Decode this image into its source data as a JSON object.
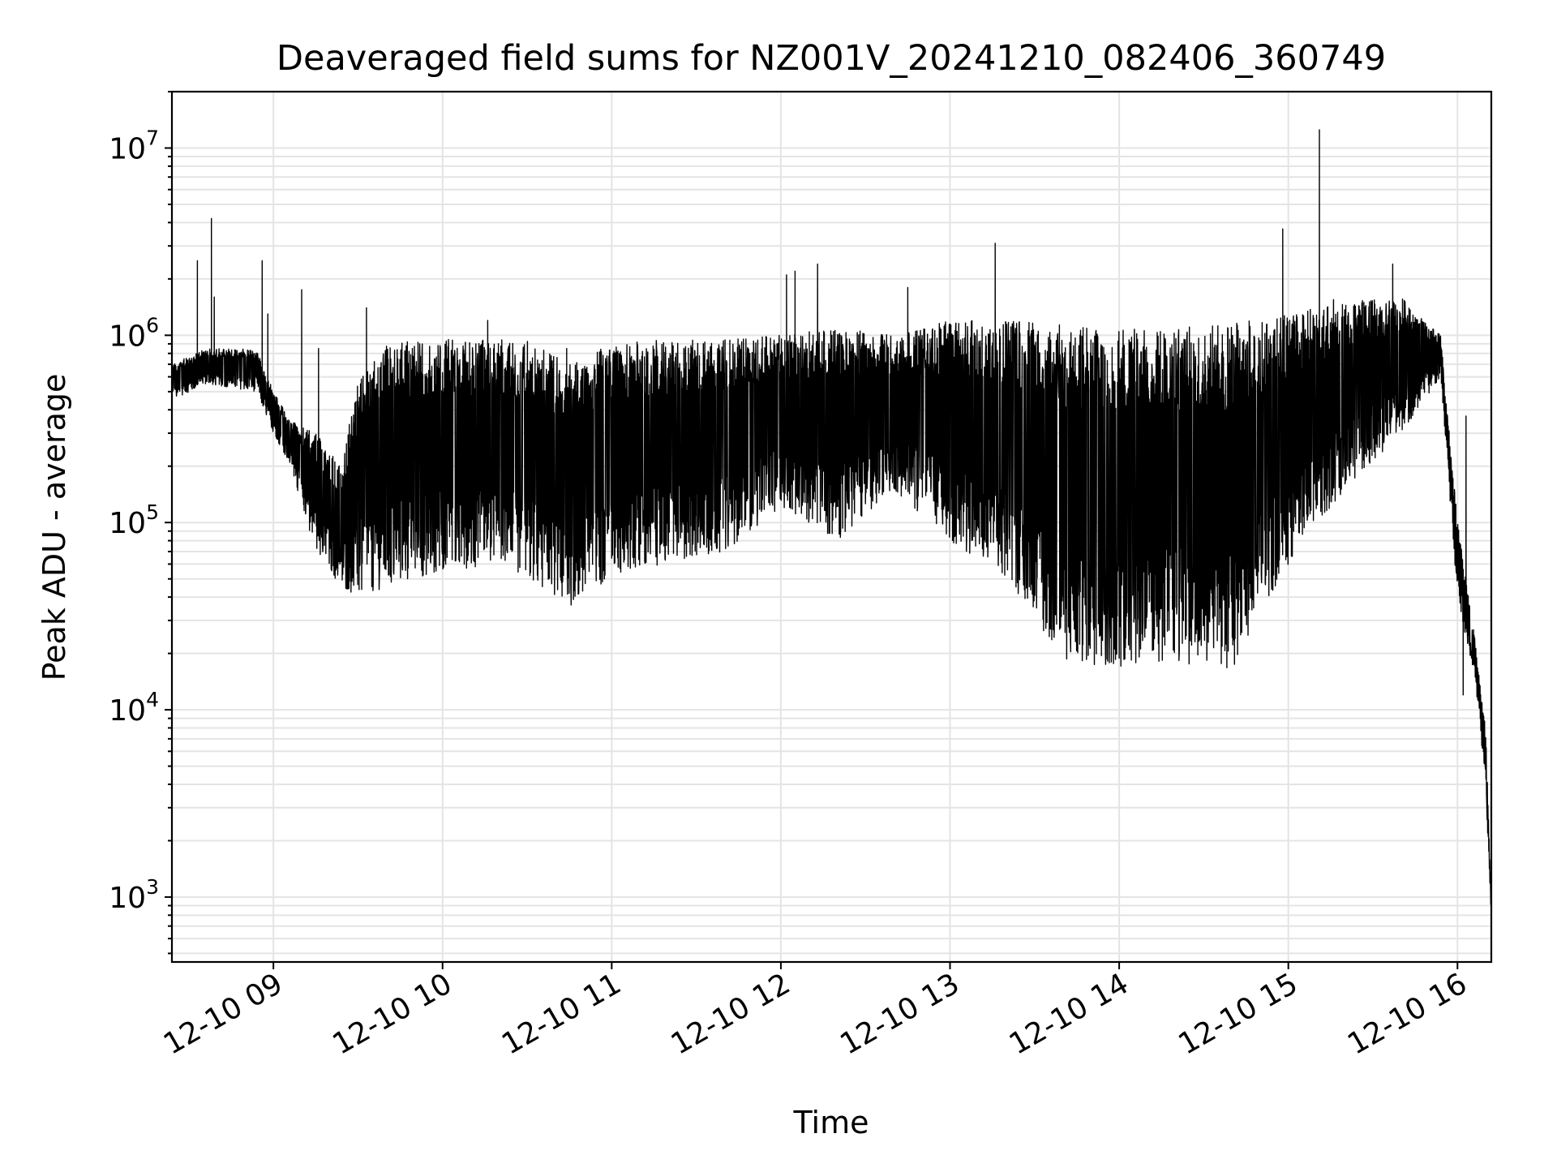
{
  "chart_data": {
    "type": "line",
    "title": "Deaveraged field sums for NZ001V_20241210_082406_360749",
    "xlabel": "Time",
    "ylabel": "Peak ADU - average",
    "yscale": "log",
    "grid": "major and minor on y, major on x",
    "legend": "none",
    "line_color": "#000000",
    "grid_color": "#e4e4e4",
    "xlim": [
      "2024-12-10 08:24",
      "2024-12-10 16:12"
    ],
    "ylim": [
      450,
      20000000
    ],
    "x_ticks": [
      {
        "time": "2024-12-10 09:00",
        "label": "12-10 09"
      },
      {
        "time": "2024-12-10 10:00",
        "label": "12-10 10"
      },
      {
        "time": "2024-12-10 11:00",
        "label": "12-10 11"
      },
      {
        "time": "2024-12-10 12:00",
        "label": "12-10 12"
      },
      {
        "time": "2024-12-10 13:00",
        "label": "12-10 13"
      },
      {
        "time": "2024-12-10 14:00",
        "label": "12-10 14"
      },
      {
        "time": "2024-12-10 15:00",
        "label": "12-10 15"
      },
      {
        "time": "2024-12-10 16:00",
        "label": "12-10 16"
      }
    ],
    "y_ticks": [
      {
        "value": 1000,
        "base": "10",
        "exp": "3"
      },
      {
        "value": 10000,
        "base": "10",
        "exp": "4"
      },
      {
        "value": 100000,
        "base": "10",
        "exp": "5"
      },
      {
        "value": 1000000,
        "base": "10",
        "exp": "6"
      },
      {
        "value": 10000000,
        "base": "10",
        "exp": "7"
      }
    ],
    "series": [
      {
        "envelope": [
          {
            "x": "2024-12-10 08:24",
            "upper": 700000,
            "lower": 450000
          },
          {
            "x": "2024-12-10 08:36",
            "upper": 850000,
            "lower": 550000
          },
          {
            "x": "2024-12-10 08:54",
            "upper": 850000,
            "lower": 500000
          },
          {
            "x": "2024-12-10 09:00",
            "upper": 500000,
            "lower": 300000
          },
          {
            "x": "2024-12-10 09:06",
            "upper": 350000,
            "lower": 200000
          },
          {
            "x": "2024-12-10 09:15",
            "upper": 300000,
            "lower": 70000
          },
          {
            "x": "2024-12-10 09:24",
            "upper": 200000,
            "lower": 45000
          },
          {
            "x": "2024-12-10 09:30",
            "upper": 600000,
            "lower": 40000
          },
          {
            "x": "2024-12-10 09:40",
            "upper": 950000,
            "lower": 45000
          },
          {
            "x": "2024-12-10 10:00",
            "upper": 950000,
            "lower": 55000
          },
          {
            "x": "2024-12-10 10:20",
            "upper": 950000,
            "lower": 60000
          },
          {
            "x": "2024-12-10 10:30",
            "upper": 950000,
            "lower": 50000
          },
          {
            "x": "2024-12-10 10:45",
            "upper": 700000,
            "lower": 35000
          },
          {
            "x": "2024-12-10 11:00",
            "upper": 900000,
            "lower": 50000
          },
          {
            "x": "2024-12-10 11:20",
            "upper": 950000,
            "lower": 60000
          },
          {
            "x": "2024-12-10 11:40",
            "upper": 950000,
            "lower": 70000
          },
          {
            "x": "2024-12-10 12:00",
            "upper": 1000000,
            "lower": 120000
          },
          {
            "x": "2024-12-10 12:20",
            "upper": 1100000,
            "lower": 80000
          },
          {
            "x": "2024-12-10 12:40",
            "upper": 1000000,
            "lower": 150000
          },
          {
            "x": "2024-12-10 13:00",
            "upper": 1200000,
            "lower": 80000
          },
          {
            "x": "2024-12-10 13:20",
            "upper": 1200000,
            "lower": 50000
          },
          {
            "x": "2024-12-10 13:40",
            "upper": 1150000,
            "lower": 18000
          },
          {
            "x": "2024-12-10 14:00",
            "upper": 1100000,
            "lower": 17000
          },
          {
            "x": "2024-12-10 14:20",
            "upper": 1100000,
            "lower": 18000
          },
          {
            "x": "2024-12-10 14:40",
            "upper": 1150000,
            "lower": 16000
          },
          {
            "x": "2024-12-10 15:00",
            "upper": 1300000,
            "lower": 60000
          },
          {
            "x": "2024-12-10 15:20",
            "upper": 1500000,
            "lower": 150000
          },
          {
            "x": "2024-12-10 15:40",
            "upper": 1600000,
            "lower": 300000
          },
          {
            "x": "2024-12-10 15:54",
            "upper": 1000000,
            "lower": 600000
          },
          {
            "x": "2024-12-10 16:00",
            "upper": 100000,
            "lower": 40000
          },
          {
            "x": "2024-12-10 16:06",
            "upper": 25000,
            "lower": 15000
          },
          {
            "x": "2024-12-10 16:10",
            "upper": 8000,
            "lower": 4000
          },
          {
            "x": "2024-12-10 16:12",
            "upper": 900,
            "lower": 700
          }
        ],
        "spikes": [
          {
            "x": "2024-12-10 08:33",
            "value": 2500000
          },
          {
            "x": "2024-12-10 08:38",
            "value": 4200000
          },
          {
            "x": "2024-12-10 08:39",
            "value": 1600000
          },
          {
            "x": "2024-12-10 08:56",
            "value": 2500000
          },
          {
            "x": "2024-12-10 08:58",
            "value": 1300000
          },
          {
            "x": "2024-12-10 09:10",
            "value": 1750000
          },
          {
            "x": "2024-12-10 09:16",
            "value": 850000
          },
          {
            "x": "2024-12-10 09:33",
            "value": 1400000
          },
          {
            "x": "2024-12-10 10:16",
            "value": 1200000
          },
          {
            "x": "2024-12-10 10:44",
            "value": 850000
          },
          {
            "x": "2024-12-10 12:02",
            "value": 2100000
          },
          {
            "x": "2024-12-10 12:05",
            "value": 2200000
          },
          {
            "x": "2024-12-10 12:13",
            "value": 2400000
          },
          {
            "x": "2024-12-10 12:45",
            "value": 1800000
          },
          {
            "x": "2024-12-10 13:16",
            "value": 3100000
          },
          {
            "x": "2024-12-10 13:16",
            "value": 1800000
          },
          {
            "x": "2024-12-10 14:58",
            "value": 3700000
          },
          {
            "x": "2024-12-10 15:11",
            "value": 12500000
          },
          {
            "x": "2024-12-10 15:16",
            "value": 1550000
          },
          {
            "x": "2024-12-10 15:37",
            "value": 2400000
          },
          {
            "x": "2024-12-10 16:03",
            "value": 370000
          },
          {
            "x": "2024-12-10 16:02",
            "value": 12000
          }
        ]
      }
    ]
  }
}
